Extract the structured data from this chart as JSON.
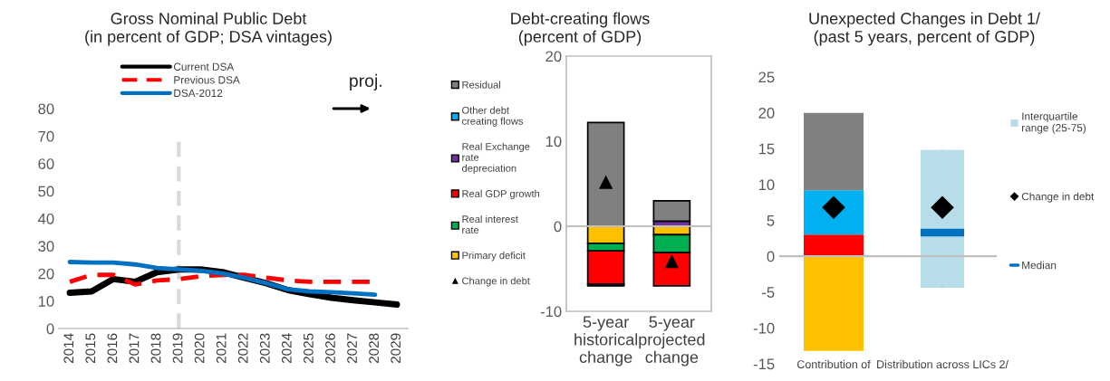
{
  "chart_data": [
    {
      "type": "line",
      "title": "Gross Nominal Public Debt",
      "subtitle": "(in percent of GDP; DSA vintages)",
      "categories": [
        "2014",
        "2015",
        "2016",
        "2017",
        "2018",
        "2019",
        "2020",
        "2021",
        "2022",
        "2023",
        "2024",
        "2025",
        "2026",
        "2027",
        "2028",
        "2029"
      ],
      "series": [
        {
          "name": "Current DSA",
          "color": "#000000",
          "line_style": "solid",
          "values": [
            13,
            13.5,
            18,
            17,
            20.5,
            21.5,
            21.5,
            20.5,
            18.5,
            16.5,
            14,
            12.5,
            11.2,
            10.3,
            9.5,
            8.7
          ]
        },
        {
          "name": "Previous DSA",
          "color": "#ff0000",
          "line_style": "dashed",
          "values": [
            17,
            19.5,
            19.5,
            16,
            17.5,
            18,
            19,
            19.5,
            19.5,
            18.5,
            17.5,
            17,
            17,
            17,
            17,
            null
          ]
        },
        {
          "name": "DSA-2012",
          "color": "#0070c0",
          "line_style": "solid",
          "values": [
            24.2,
            24,
            24,
            23.3,
            22,
            21.5,
            21,
            20,
            18.5,
            16.5,
            14.3,
            13.5,
            13.2,
            12.8,
            12.3,
            null
          ]
        }
      ],
      "ylim": [
        0,
        80
      ],
      "yticks": [
        0,
        10,
        20,
        30,
        40,
        50,
        60,
        70,
        80
      ],
      "grid": false,
      "legend": "top",
      "ref_lines": [
        {
          "axis": "x",
          "value": "2019",
          "color": "#d9d9d9",
          "line_style": "dashed"
        }
      ],
      "annotations": [
        "proj."
      ]
    },
    {
      "type": "bar",
      "title": "Debt-creating flows",
      "subtitle": "(percent of GDP)",
      "stacked": true,
      "categories": [
        "5-year historical change",
        "5-year projected change"
      ],
      "series": [
        {
          "name": "Primary deficit",
          "color": "#ffc000",
          "values": [
            -2,
            -1
          ]
        },
        {
          "name": "Real interest rate",
          "color": "#00b050",
          "values": [
            -0.9,
            -2.1
          ]
        },
        {
          "name": "Real GDP growth",
          "color": "#ff0000",
          "values": [
            -3.9,
            -3.9
          ]
        },
        {
          "name": "Real Exchange rate depreciation",
          "color": "#7030a0",
          "values": [
            -0.2,
            0.6
          ]
        },
        {
          "name": "Other debt creating flows",
          "color": "#00b0f0",
          "values": [
            null,
            null
          ]
        },
        {
          "name": "Residual",
          "color": "#808080",
          "values": [
            12.2,
            2.4
          ]
        },
        {
          "name": "Change in debt",
          "type": "scatter",
          "marker": "triangle",
          "color": "#000000",
          "values": [
            5.2,
            -4.1
          ]
        }
      ],
      "ylim": [
        -10,
        20
      ],
      "yticks": [
        -10,
        0,
        10,
        20
      ],
      "grid": false,
      "legend": "left",
      "ref_lines": [
        {
          "axis": "y",
          "value": 0,
          "color": "#bfbfbf",
          "line_style": "solid"
        }
      ]
    },
    {
      "type": "bar",
      "title": "Unexpected Changes in Debt 1/",
      "subtitle": "(past 5 years, percent of GDP)",
      "stacked": true,
      "categories": [
        "Contribution of",
        "Distribution across LICs 2/"
      ],
      "series": [
        {
          "color": "#ffc000",
          "values": [
            -13.2,
            null
          ]
        },
        {
          "color": "#ff0000",
          "values": [
            3,
            null
          ]
        },
        {
          "color": "#00b0f0",
          "values": [
            6.2,
            null
          ]
        },
        {
          "color": "#808080",
          "values": [
            10.8,
            null
          ]
        },
        {
          "name": "Interquartile range (25-75)",
          "type": "box",
          "color": "#b7dde8",
          "boxes": [
            null,
            {
              "low": -4.4,
              "q1": -4.4,
              "median": 3.3,
              "q3": 14.8,
              "high": 14.8
            }
          ]
        },
        {
          "name": "Change in debt",
          "type": "scatter",
          "marker": "diamond",
          "color": "#000000",
          "values": [
            6.8,
            6.8
          ]
        },
        {
          "name": "Median",
          "type": "box",
          "color": "#0070c0",
          "boxes": [
            null,
            null
          ]
        }
      ],
      "ylim": [
        -15,
        25
      ],
      "yticks": [
        -15,
        -10,
        -5,
        0,
        5,
        10,
        15,
        20,
        25
      ],
      "grid": false,
      "legend": "right",
      "ref_lines": [
        {
          "axis": "y",
          "value": 0,
          "color": "#bfbfbf",
          "line_style": "solid"
        }
      ]
    }
  ]
}
